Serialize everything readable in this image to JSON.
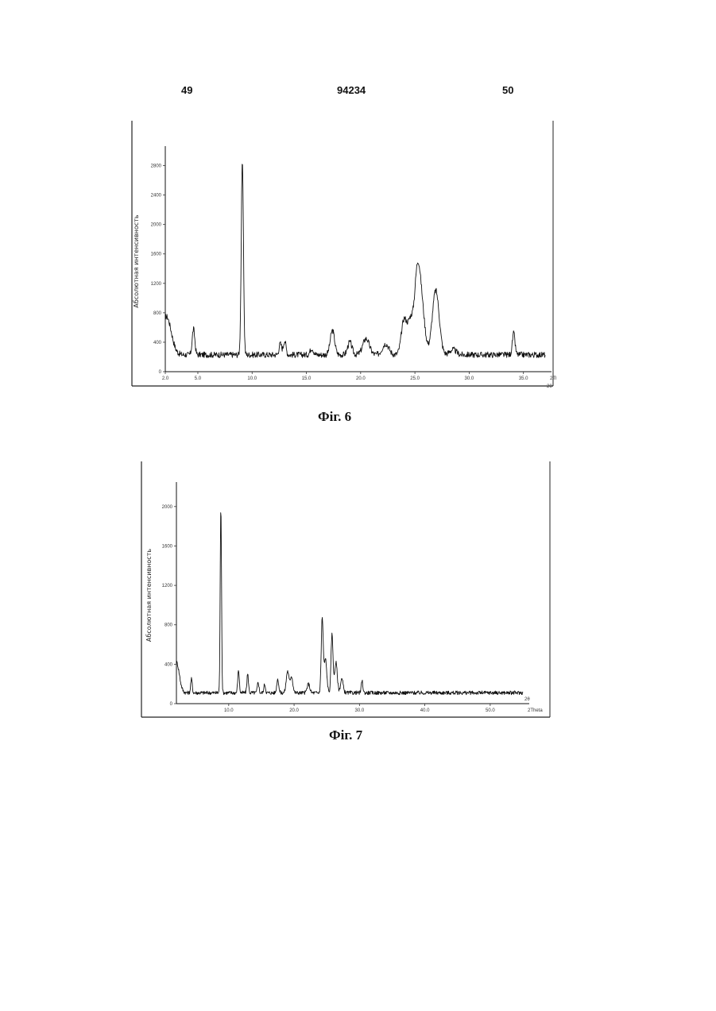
{
  "header": {
    "left_page": "49",
    "patent_number": "94234",
    "right_page": "50"
  },
  "figures": [
    {
      "caption": "Фіг. 6"
    },
    {
      "caption": "Фіг. 7"
    }
  ],
  "chart_data": [
    {
      "type": "line",
      "ylabel": "Абсолютная интенсивность",
      "xlabel": "2θ",
      "x_unit": "2Theta",
      "xlim": [
        2.0,
        37.0
      ],
      "ylim": [
        0,
        3000
      ],
      "x_ticks": [
        2.0,
        5.0,
        10.0,
        15.0,
        20.0,
        25.0,
        30.0,
        35.0
      ],
      "x_tick_labels": [
        "2.0",
        "5.0",
        "10.0",
        "15.0",
        "20.0",
        "25.0",
        "30.0",
        "35.0"
      ],
      "y_ticks": [
        0,
        400,
        800,
        1200,
        1600,
        2000,
        2400,
        2800
      ],
      "y_tick_labels": [
        "0",
        "400",
        "800",
        "1200",
        "1600",
        "2000",
        "2400",
        "2800"
      ],
      "baseline": 230,
      "peaks": [
        {
          "x": 2.1,
          "y": 750,
          "w": 0.45
        },
        {
          "x": 4.6,
          "y": 580,
          "w": 0.12
        },
        {
          "x": 9.1,
          "y": 2850,
          "w": 0.1
        },
        {
          "x": 12.6,
          "y": 380,
          "w": 0.12
        },
        {
          "x": 13.0,
          "y": 420,
          "w": 0.12
        },
        {
          "x": 15.5,
          "y": 320,
          "w": 0.15
        },
        {
          "x": 17.4,
          "y": 560,
          "w": 0.2
        },
        {
          "x": 19.0,
          "y": 400,
          "w": 0.2
        },
        {
          "x": 20.5,
          "y": 450,
          "w": 0.3
        },
        {
          "x": 22.3,
          "y": 380,
          "w": 0.3
        },
        {
          "x": 24.0,
          "y": 700,
          "w": 0.25
        },
        {
          "x": 24.6,
          "y": 680,
          "w": 0.25
        },
        {
          "x": 25.2,
          "y": 1160,
          "w": 0.25
        },
        {
          "x": 25.6,
          "y": 900,
          "w": 0.3
        },
        {
          "x": 26.8,
          "y": 600,
          "w": 0.3
        },
        {
          "x": 27.0,
          "y": 780,
          "w": 0.3
        },
        {
          "x": 28.5,
          "y": 300,
          "w": 0.3
        },
        {
          "x": 34.1,
          "y": 520,
          "w": 0.12
        }
      ]
    },
    {
      "type": "line",
      "ylabel": "Абсолютная интенсивность",
      "xlabel": "2θ",
      "x_unit": "2Theta",
      "xlim": [
        2.0,
        55.0
      ],
      "ylim": [
        0,
        2200
      ],
      "x_ticks": [
        10.0,
        20.0,
        30.0,
        40.0,
        50.0
      ],
      "x_tick_labels": [
        "10.0",
        "20.0",
        "30.0",
        "40.0",
        "50.0"
      ],
      "y_ticks": [
        0,
        400,
        800,
        1200,
        1600,
        2000
      ],
      "y_tick_labels": [
        "0",
        "400",
        "800",
        "1200",
        "1600",
        "2000"
      ],
      "baseline": 110,
      "peaks": [
        {
          "x": 2.0,
          "y": 420,
          "w": 0.45
        },
        {
          "x": 4.3,
          "y": 250,
          "w": 0.12
        },
        {
          "x": 8.8,
          "y": 2000,
          "w": 0.1
        },
        {
          "x": 11.5,
          "y": 340,
          "w": 0.12
        },
        {
          "x": 12.9,
          "y": 300,
          "w": 0.12
        },
        {
          "x": 14.5,
          "y": 220,
          "w": 0.12
        },
        {
          "x": 15.5,
          "y": 200,
          "w": 0.12
        },
        {
          "x": 17.5,
          "y": 250,
          "w": 0.15
        },
        {
          "x": 19.0,
          "y": 330,
          "w": 0.2
        },
        {
          "x": 19.6,
          "y": 280,
          "w": 0.2
        },
        {
          "x": 22.2,
          "y": 200,
          "w": 0.2
        },
        {
          "x": 24.3,
          "y": 860,
          "w": 0.15
        },
        {
          "x": 24.8,
          "y": 450,
          "w": 0.2
        },
        {
          "x": 25.8,
          "y": 700,
          "w": 0.15
        },
        {
          "x": 26.4,
          "y": 420,
          "w": 0.2
        },
        {
          "x": 27.3,
          "y": 250,
          "w": 0.2
        },
        {
          "x": 30.4,
          "y": 230,
          "w": 0.12
        },
        {
          "x": 43.2,
          "y": 110,
          "w": 0.15
        }
      ]
    }
  ]
}
